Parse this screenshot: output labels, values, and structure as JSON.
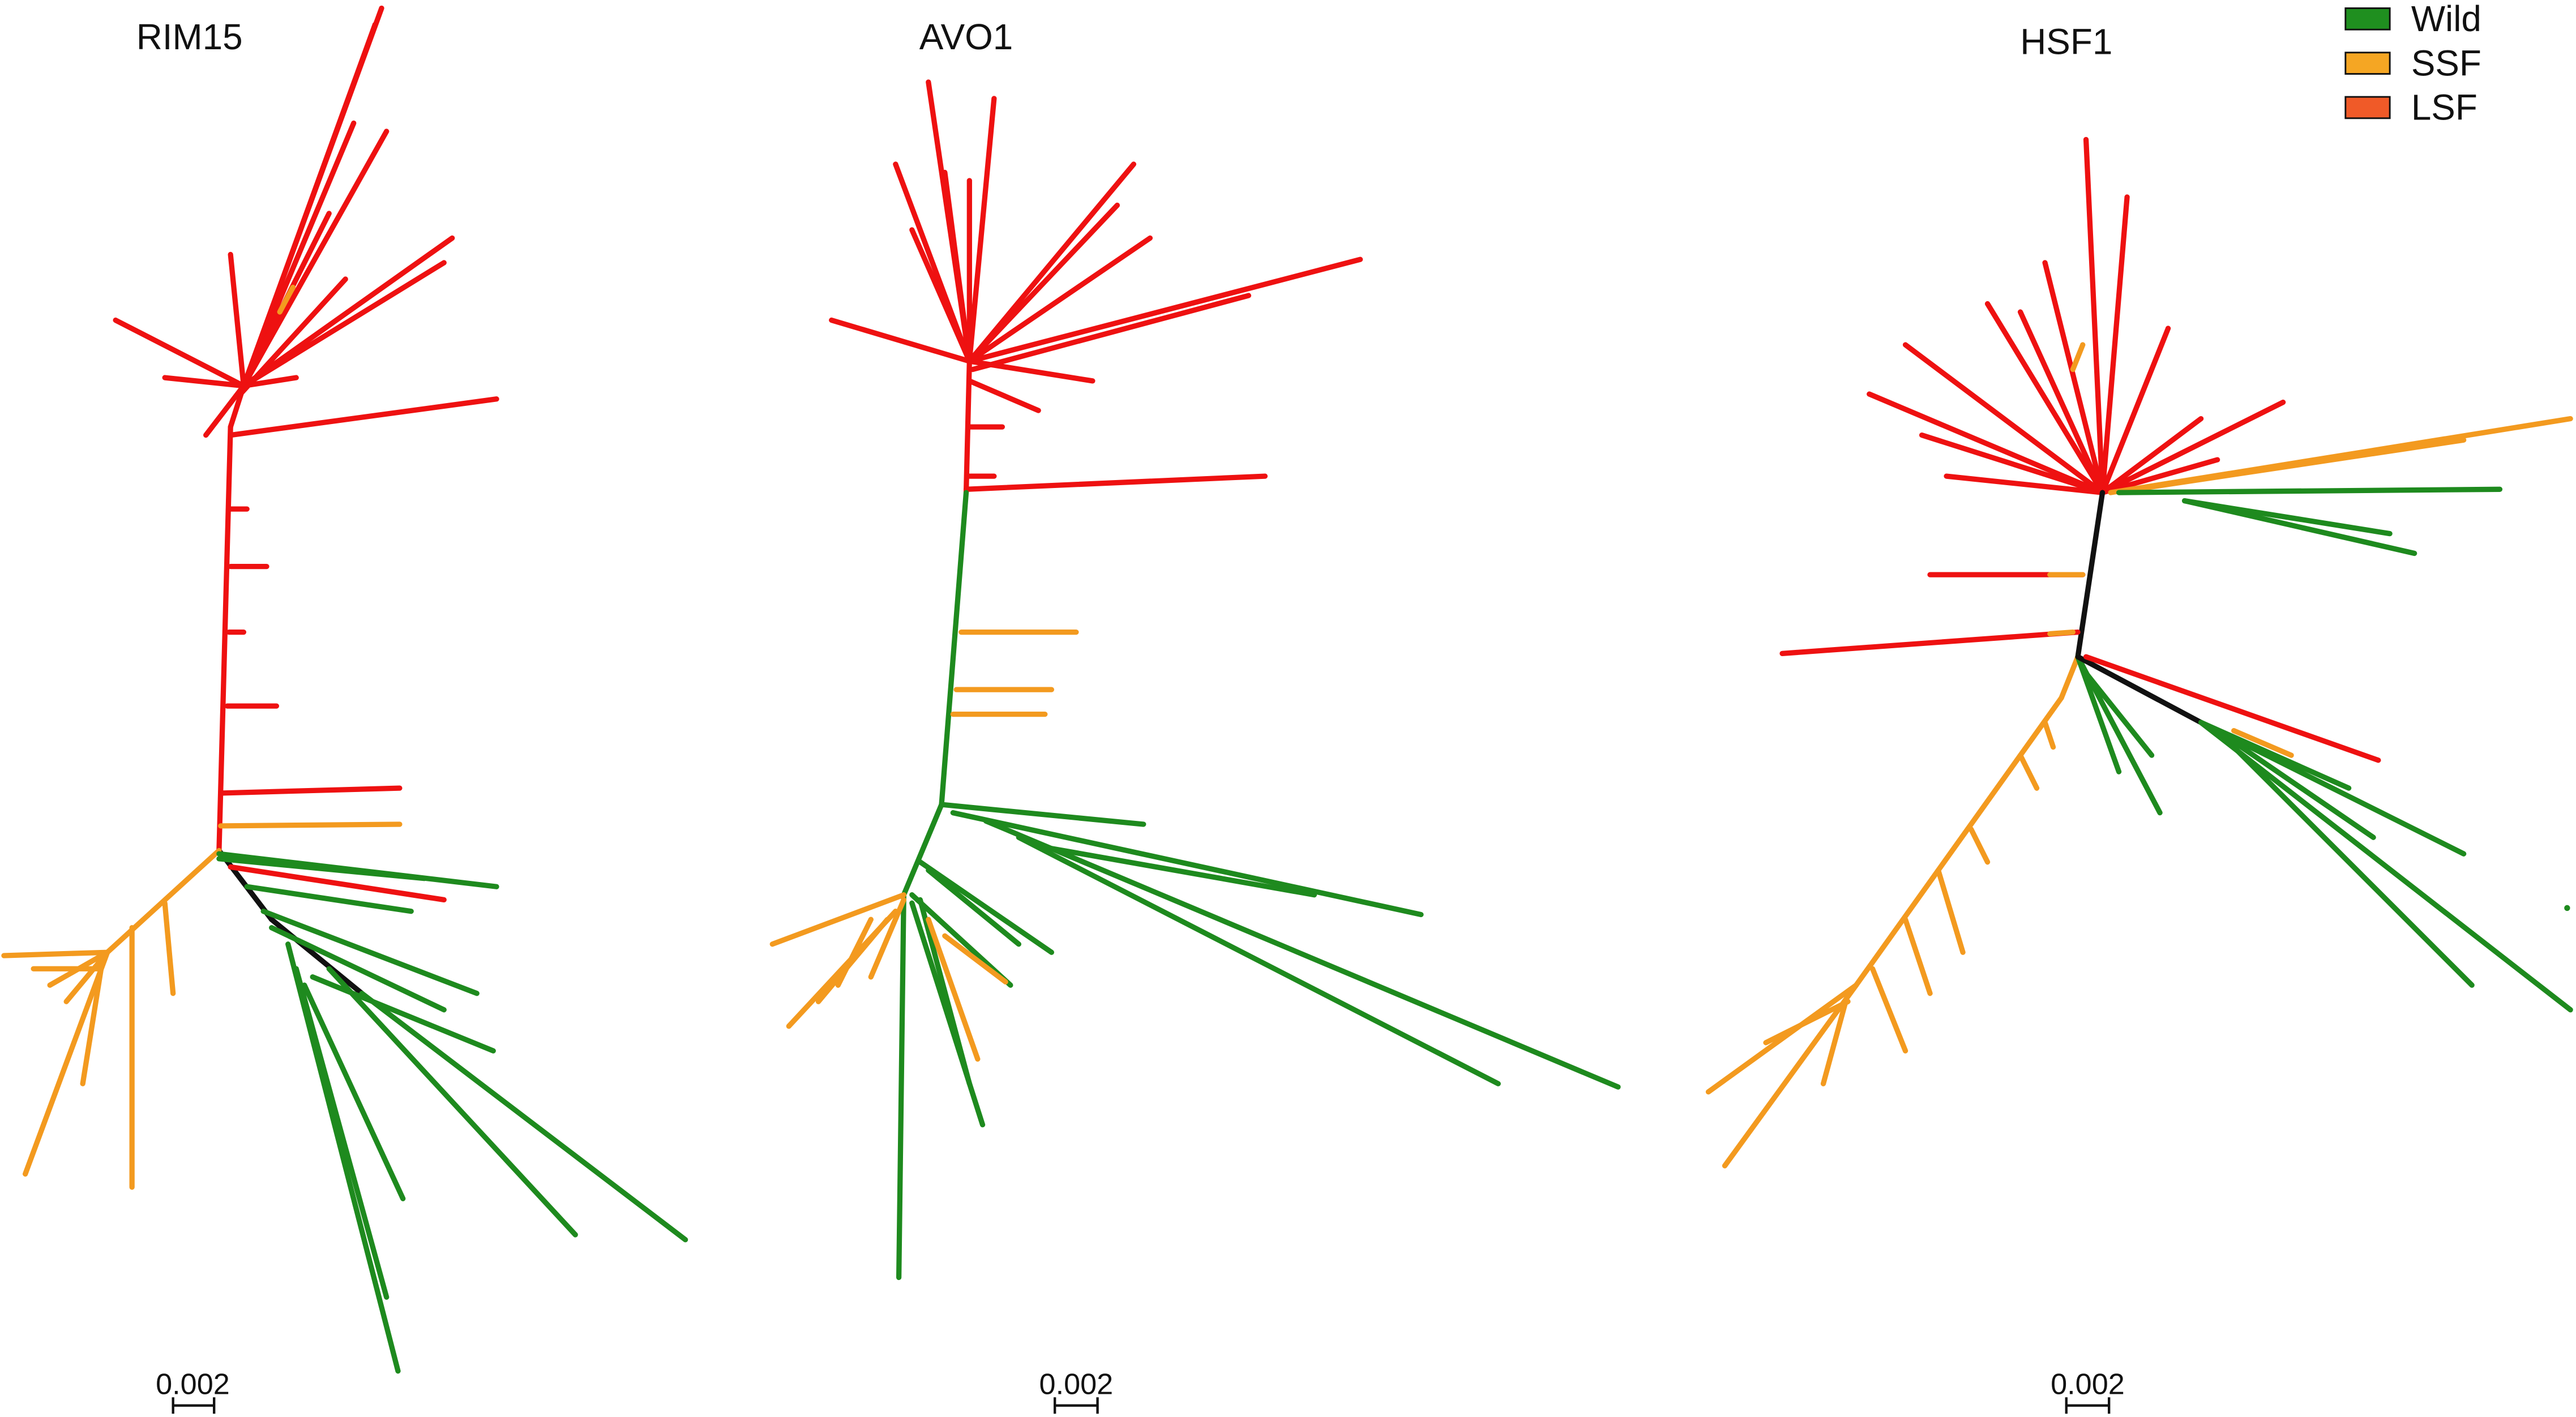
{
  "panels": [
    {
      "title": "RIM15",
      "scale_label": "0.002"
    },
    {
      "title": "AVO1",
      "scale_label": "0.002"
    },
    {
      "title": "HSF1",
      "scale_label": "0.002"
    }
  ],
  "legend": [
    {
      "label": "Wild",
      "color": "#1f8f1f"
    },
    {
      "label": "SSF",
      "color": "#f5a623"
    },
    {
      "label": "LSF",
      "color": "#f05a28"
    }
  ]
}
